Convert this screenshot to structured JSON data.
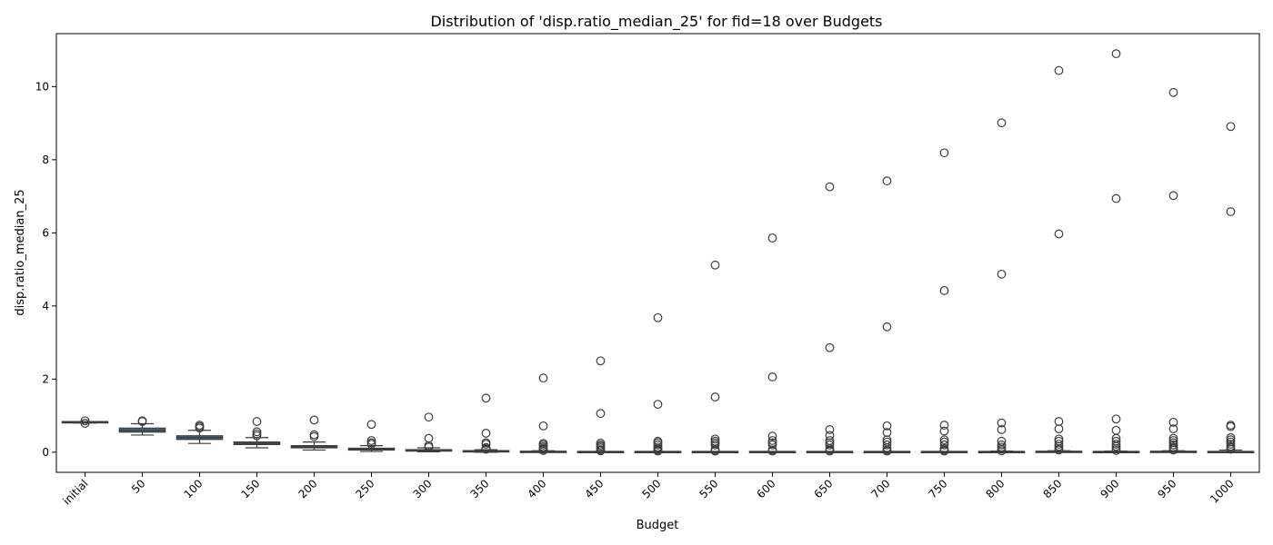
{
  "chart_data": {
    "type": "box",
    "title": "Distribution of 'disp.ratio_median_25' for fid=18 over Budgets",
    "xlabel": "Budget",
    "ylabel": "disp.ratio_median_25",
    "ylim": [
      -0.55,
      11.45
    ],
    "yticks": [
      0,
      2,
      4,
      6,
      8,
      10
    ],
    "grid": false,
    "box_color": "#3a6b8f",
    "line_color": "#3d3d3d",
    "categories": [
      "initial",
      "50",
      "100",
      "150",
      "200",
      "250",
      "300",
      "350",
      "400",
      "450",
      "500",
      "550",
      "600",
      "650",
      "700",
      "750",
      "800",
      "850",
      "900",
      "950",
      "1000"
    ],
    "boxes": [
      {
        "whislo": 0.8,
        "q1": 0.81,
        "med": 0.82,
        "q3": 0.83,
        "whishi": 0.84,
        "fliers": [
          0.86,
          0.79
        ]
      },
      {
        "whislo": 0.47,
        "q1": 0.55,
        "med": 0.6,
        "q3": 0.66,
        "whishi": 0.78,
        "fliers": [
          0.84,
          0.86
        ]
      },
      {
        "whislo": 0.24,
        "q1": 0.35,
        "med": 0.4,
        "q3": 0.45,
        "whishi": 0.6,
        "fliers": [
          0.66,
          0.7,
          0.74
        ]
      },
      {
        "whislo": 0.12,
        "q1": 0.21,
        "med": 0.24,
        "q3": 0.28,
        "whishi": 0.4,
        "fliers": [
          0.45,
          0.5,
          0.56,
          0.84
        ]
      },
      {
        "whislo": 0.06,
        "q1": 0.12,
        "med": 0.15,
        "q3": 0.18,
        "whishi": 0.28,
        "fliers": [
          0.43,
          0.48,
          0.88
        ]
      },
      {
        "whislo": 0.02,
        "q1": 0.06,
        "med": 0.09,
        "q3": 0.11,
        "whishi": 0.18,
        "fliers": [
          0.22,
          0.26,
          0.32,
          0.76
        ]
      },
      {
        "whislo": 0.01,
        "q1": 0.03,
        "med": 0.05,
        "q3": 0.07,
        "whishi": 0.12,
        "fliers": [
          0.14,
          0.18,
          0.38,
          0.96
        ]
      },
      {
        "whislo": 0.0,
        "q1": 0.01,
        "med": 0.02,
        "q3": 0.04,
        "whishi": 0.07,
        "fliers": [
          0.08,
          0.1,
          0.13,
          0.22,
          0.26,
          0.52,
          1.48
        ]
      },
      {
        "whislo": 0.0,
        "q1": 0.0,
        "med": 0.01,
        "q3": 0.02,
        "whishi": 0.04,
        "fliers": [
          0.05,
          0.08,
          0.11,
          0.15,
          0.2,
          0.24,
          0.72,
          2.03
        ]
      },
      {
        "whislo": 0.0,
        "q1": 0.0,
        "med": 0.0,
        "q3": 0.01,
        "whishi": 0.02,
        "fliers": [
          0.04,
          0.07,
          0.12,
          0.16,
          0.2,
          0.25,
          1.06,
          2.5
        ]
      },
      {
        "whislo": 0.0,
        "q1": 0.0,
        "med": 0.0,
        "q3": 0.01,
        "whishi": 0.02,
        "fliers": [
          0.03,
          0.06,
          0.1,
          0.14,
          0.2,
          0.26,
          0.3,
          1.31,
          3.68
        ]
      },
      {
        "whislo": 0.0,
        "q1": 0.0,
        "med": 0.0,
        "q3": 0.01,
        "whishi": 0.02,
        "fliers": [
          0.03,
          0.05,
          0.08,
          0.2,
          0.25,
          0.3,
          0.36,
          1.51,
          5.12
        ]
      },
      {
        "whislo": 0.0,
        "q1": 0.0,
        "med": 0.0,
        "q3": 0.01,
        "whishi": 0.02,
        "fliers": [
          0.03,
          0.06,
          0.2,
          0.26,
          0.32,
          0.44,
          2.06,
          5.86
        ]
      },
      {
        "whislo": 0.0,
        "q1": 0.0,
        "med": 0.0,
        "q3": 0.01,
        "whishi": 0.02,
        "fliers": [
          0.03,
          0.06,
          0.1,
          0.2,
          0.26,
          0.32,
          0.46,
          0.62,
          2.86,
          7.26
        ]
      },
      {
        "whislo": 0.0,
        "q1": 0.0,
        "med": 0.0,
        "q3": 0.01,
        "whishi": 0.02,
        "fliers": [
          0.03,
          0.06,
          0.12,
          0.2,
          0.28,
          0.34,
          0.54,
          0.72,
          3.43,
          7.42
        ]
      },
      {
        "whislo": 0.0,
        "q1": 0.0,
        "med": 0.0,
        "q3": 0.01,
        "whishi": 0.02,
        "fliers": [
          0.03,
          0.06,
          0.1,
          0.2,
          0.28,
          0.34,
          0.58,
          0.74,
          4.42,
          8.19
        ]
      },
      {
        "whislo": 0.0,
        "q1": 0.0,
        "med": 0.0,
        "q3": 0.01,
        "whishi": 0.03,
        "fliers": [
          0.04,
          0.08,
          0.14,
          0.2,
          0.3,
          0.62,
          0.8,
          4.87,
          9.01
        ]
      },
      {
        "whislo": 0.0,
        "q1": 0.0,
        "med": 0.01,
        "q3": 0.02,
        "whishi": 0.04,
        "fliers": [
          0.06,
          0.1,
          0.16,
          0.22,
          0.3,
          0.36,
          0.64,
          0.84,
          5.97,
          10.44
        ]
      },
      {
        "whislo": 0.0,
        "q1": 0.0,
        "med": 0.0,
        "q3": 0.01,
        "whishi": 0.03,
        "fliers": [
          0.05,
          0.1,
          0.16,
          0.22,
          0.3,
          0.38,
          0.6,
          0.91,
          6.94,
          10.9
        ]
      },
      {
        "whislo": 0.0,
        "q1": 0.0,
        "med": 0.01,
        "q3": 0.02,
        "whishi": 0.04,
        "fliers": [
          0.06,
          0.1,
          0.14,
          0.2,
          0.26,
          0.32,
          0.38,
          0.64,
          0.82,
          7.02,
          9.84
        ]
      },
      {
        "whislo": 0.0,
        "q1": 0.0,
        "med": 0.0,
        "q3": 0.01,
        "whishi": 0.06,
        "fliers": [
          0.08,
          0.12,
          0.16,
          0.22,
          0.28,
          0.34,
          0.4,
          0.7,
          0.74,
          6.58,
          8.91
        ]
      }
    ]
  }
}
